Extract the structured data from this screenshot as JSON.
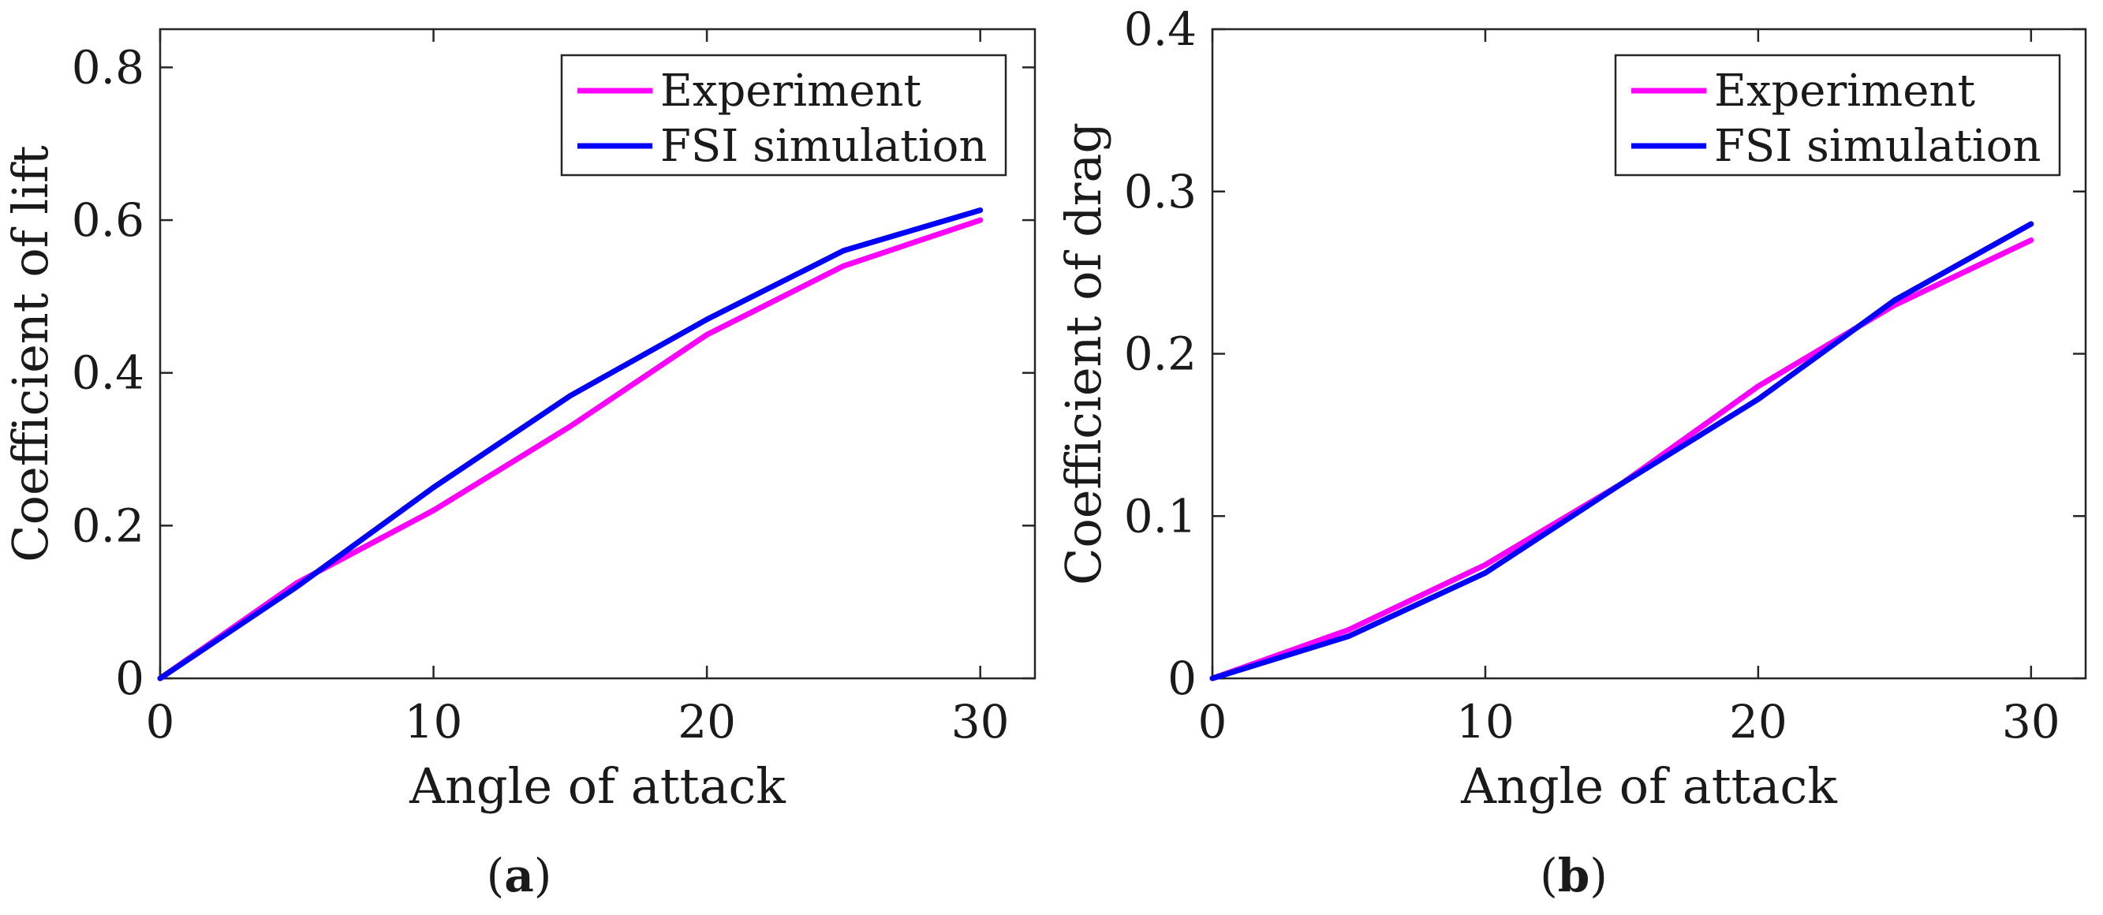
{
  "captions": {
    "a": {
      "open": "(",
      "letter": "a",
      "close": ")"
    },
    "b": {
      "open": "(",
      "letter": "b",
      "close": ")"
    }
  },
  "chart_data": [
    {
      "type": "line",
      "panel": "a",
      "xlabel": "Angle of attack",
      "ylabel": "Coefficient of lift",
      "xlim": [
        0,
        32
      ],
      "ylim": [
        0,
        0.85
      ],
      "xticks": [
        0,
        10,
        20,
        30
      ],
      "yticks": [
        0,
        0.2,
        0.4,
        0.6,
        0.8
      ],
      "xtick_labels": [
        "0",
        "10",
        "20",
        "30"
      ],
      "ytick_labels": [
        "0",
        "0.2",
        "0.4",
        "0.6",
        "0.8"
      ],
      "grid": false,
      "legend_position": "top-right",
      "x": [
        0,
        5,
        10,
        15,
        20,
        25,
        30
      ],
      "series": [
        {
          "name": "Experiment",
          "color": "#ff00ff",
          "values": [
            0,
            0.125,
            0.22,
            0.33,
            0.45,
            0.54,
            0.6
          ]
        },
        {
          "name": "FSI simulation",
          "color": "#0000ff",
          "values": [
            0,
            0.12,
            0.25,
            0.37,
            0.47,
            0.56,
            0.613
          ]
        }
      ]
    },
    {
      "type": "line",
      "panel": "b",
      "xlabel": "Angle of attack",
      "ylabel": "Coefficient of drag",
      "xlim": [
        0,
        32
      ],
      "ylim": [
        0,
        0.4
      ],
      "xticks": [
        0,
        10,
        20,
        30
      ],
      "yticks": [
        0,
        0.1,
        0.2,
        0.3,
        0.4
      ],
      "xtick_labels": [
        "0",
        "10",
        "20",
        "30"
      ],
      "ytick_labels": [
        "0",
        "0.1",
        "0.2",
        "0.3",
        "0.4"
      ],
      "grid": false,
      "legend_position": "top-right",
      "x": [
        0,
        5,
        10,
        15,
        20,
        25,
        30
      ],
      "series": [
        {
          "name": "Experiment",
          "color": "#ff00ff",
          "values": [
            0,
            0.03,
            0.07,
            0.12,
            0.18,
            0.23,
            0.27
          ]
        },
        {
          "name": "FSI simulation",
          "color": "#0000ff",
          "values": [
            0,
            0.026,
            0.065,
            0.12,
            0.172,
            0.233,
            0.28
          ]
        }
      ]
    }
  ]
}
